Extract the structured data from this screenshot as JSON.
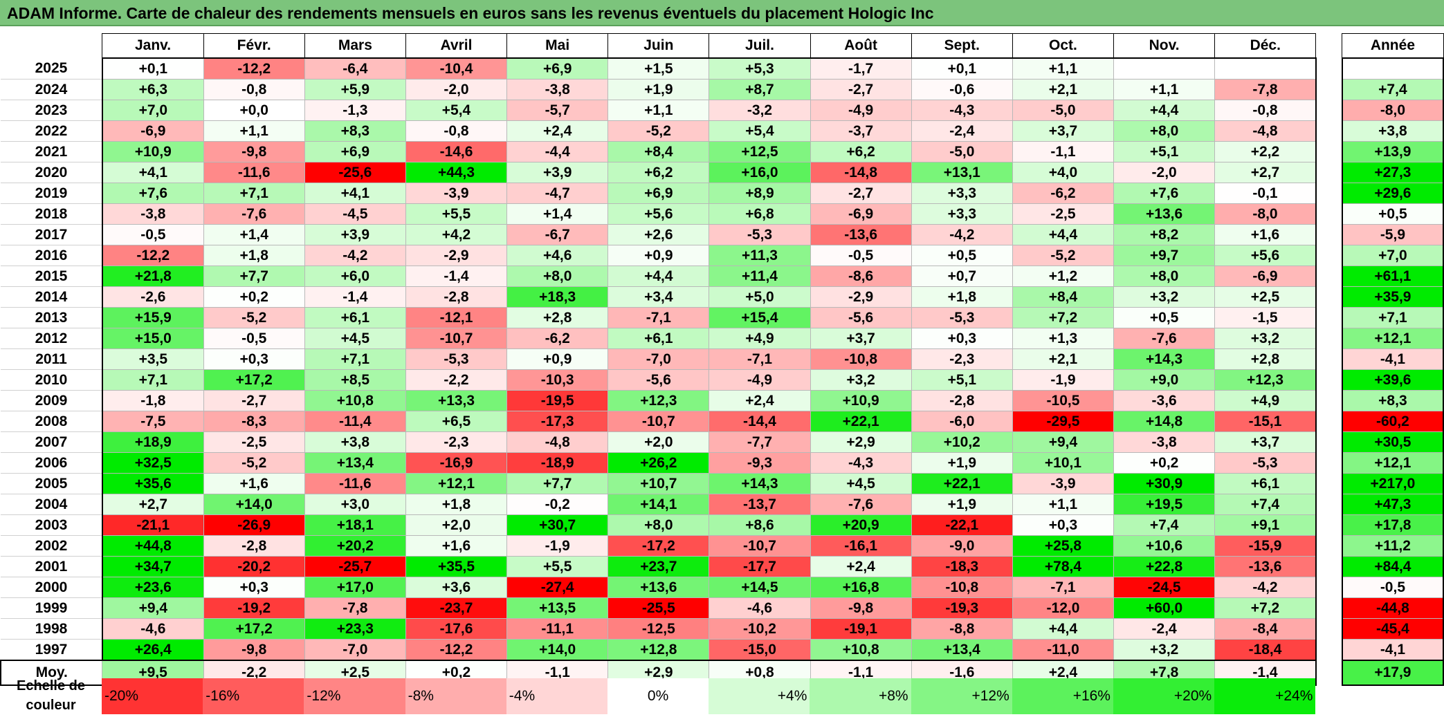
{
  "title": "ADAM Informe. Carte de chaleur des rendements mensuels en euros sans les revenus éventuels du placement Hologic Inc",
  "colors": {
    "title_bg": "#7cc47c",
    "neg_max": "#ff0000",
    "pos_max": "#00ee00",
    "zero": "#ffffff"
  },
  "chart_data": {
    "type": "heatmap",
    "title": "ADAM Informe. Carte de chaleur des rendements mensuels en euros sans les revenus éventuels du placement Hologic Inc",
    "columns": [
      "Janv.",
      "Févr.",
      "Mars",
      "Avril",
      "Mai",
      "Juin",
      "Juil.",
      "Août",
      "Sept.",
      "Oct.",
      "Nov.",
      "Déc."
    ],
    "year_header": "Année",
    "avg_label": "Moy.",
    "rows": [
      {
        "year": "2025",
        "months": [
          "+0,1",
          "-12,2",
          "-6,4",
          "-10,4",
          "+6,9",
          "+1,5",
          "+5,3",
          "-1,7",
          "+0,1",
          "+1,1",
          "",
          ""
        ],
        "annual": ""
      },
      {
        "year": "2024",
        "months": [
          "+6,3",
          "-0,8",
          "+5,9",
          "-2,0",
          "-3,8",
          "+1,9",
          "+8,7",
          "-2,7",
          "-0,6",
          "+2,1",
          "+1,1",
          "-7,8"
        ],
        "annual": "+7,4"
      },
      {
        "year": "2023",
        "months": [
          "+7,0",
          "+0,0",
          "-1,3",
          "+5,4",
          "-5,7",
          "+1,1",
          "-3,2",
          "-4,9",
          "-4,3",
          "-5,0",
          "+4,4",
          "-0,8"
        ],
        "annual": "-8,0"
      },
      {
        "year": "2022",
        "months": [
          "-6,9",
          "+1,1",
          "+8,3",
          "-0,8",
          "+2,4",
          "-5,2",
          "+5,4",
          "-3,7",
          "-2,4",
          "+3,7",
          "+8,0",
          "-4,8"
        ],
        "annual": "+3,8"
      },
      {
        "year": "2021",
        "months": [
          "+10,9",
          "-9,8",
          "+6,9",
          "-14,6",
          "-4,4",
          "+8,4",
          "+12,5",
          "+6,2",
          "-5,0",
          "-1,1",
          "+5,1",
          "+2,2"
        ],
        "annual": "+13,9"
      },
      {
        "year": "2020",
        "months": [
          "+4,1",
          "-11,6",
          "-25,6",
          "+44,3",
          "+3,9",
          "+6,2",
          "+16,0",
          "-14,8",
          "+13,1",
          "+4,0",
          "-2,0",
          "+2,7"
        ],
        "annual": "+27,3"
      },
      {
        "year": "2019",
        "months": [
          "+7,6",
          "+7,1",
          "+4,1",
          "-3,9",
          "-4,7",
          "+6,9",
          "+8,9",
          "-2,7",
          "+3,3",
          "-6,2",
          "+7,6",
          "-0,1"
        ],
        "annual": "+29,6"
      },
      {
        "year": "2018",
        "months": [
          "-3,8",
          "-7,6",
          "-4,5",
          "+5,5",
          "+1,4",
          "+5,6",
          "+6,8",
          "-6,9",
          "+3,3",
          "-2,5",
          "+13,6",
          "-8,0"
        ],
        "annual": "+0,5"
      },
      {
        "year": "2017",
        "months": [
          "-0,5",
          "+1,4",
          "+3,9",
          "+4,2",
          "-6,7",
          "+2,6",
          "-5,3",
          "-13,6",
          "-4,2",
          "+4,4",
          "+8,2",
          "+1,6"
        ],
        "annual": "-5,9"
      },
      {
        "year": "2016",
        "months": [
          "-12,2",
          "+1,8",
          "-4,2",
          "-2,9",
          "+4,6",
          "+0,9",
          "+11,3",
          "-0,5",
          "+0,5",
          "-5,2",
          "+9,7",
          "+5,6"
        ],
        "annual": "+7,0"
      },
      {
        "year": "2015",
        "months": [
          "+21,8",
          "+7,7",
          "+6,0",
          "-1,4",
          "+8,0",
          "+4,4",
          "+11,4",
          "-8,6",
          "+0,7",
          "+1,2",
          "+8,0",
          "-6,9"
        ],
        "annual": "+61,1"
      },
      {
        "year": "2014",
        "months": [
          "-2,6",
          "+0,2",
          "-1,4",
          "-2,8",
          "+18,3",
          "+3,4",
          "+5,0",
          "-2,9",
          "+1,8",
          "+8,4",
          "+3,2",
          "+2,5"
        ],
        "annual": "+35,9"
      },
      {
        "year": "2013",
        "months": [
          "+15,9",
          "-5,2",
          "+6,1",
          "-12,1",
          "+2,8",
          "-7,1",
          "+15,4",
          "-5,6",
          "-5,3",
          "+7,2",
          "+0,5",
          "-1,5"
        ],
        "annual": "+7,1"
      },
      {
        "year": "2012",
        "months": [
          "+15,0",
          "-0,5",
          "+4,5",
          "-10,7",
          "-6,2",
          "+6,1",
          "+4,9",
          "+3,7",
          "+0,3",
          "+1,3",
          "-7,6",
          "+3,2"
        ],
        "annual": "+12,1"
      },
      {
        "year": "2011",
        "months": [
          "+3,5",
          "+0,3",
          "+7,1",
          "-5,3",
          "+0,9",
          "-7,0",
          "-7,1",
          "-10,8",
          "-2,3",
          "+2,1",
          "+14,3",
          "+2,8"
        ],
        "annual": "-4,1"
      },
      {
        "year": "2010",
        "months": [
          "+7,1",
          "+17,2",
          "+8,5",
          "-2,2",
          "-10,3",
          "-5,6",
          "-4,9",
          "+3,2",
          "+5,1",
          "-1,9",
          "+9,0",
          "+12,3"
        ],
        "annual": "+39,6"
      },
      {
        "year": "2009",
        "months": [
          "-1,8",
          "-2,7",
          "+10,8",
          "+13,3",
          "-19,5",
          "+12,3",
          "+2,4",
          "+10,9",
          "-2,8",
          "-10,5",
          "-3,6",
          "+4,9"
        ],
        "annual": "+8,3"
      },
      {
        "year": "2008",
        "months": [
          "-7,5",
          "-8,3",
          "-11,4",
          "+6,5",
          "-17,3",
          "-10,7",
          "-14,4",
          "+22,1",
          "-6,0",
          "-29,5",
          "+14,8",
          "-15,1"
        ],
        "annual": "-60,2"
      },
      {
        "year": "2007",
        "months": [
          "+18,9",
          "-2,5",
          "+3,8",
          "-2,3",
          "-4,8",
          "+2,0",
          "-7,7",
          "+2,9",
          "+10,2",
          "+9,4",
          "-3,8",
          "+3,7"
        ],
        "annual": "+30,5"
      },
      {
        "year": "2006",
        "months": [
          "+32,5",
          "-5,2",
          "+13,4",
          "-16,9",
          "-18,9",
          "+26,2",
          "-9,3",
          "-4,3",
          "+1,9",
          "+10,1",
          "+0,2",
          "-5,3"
        ],
        "annual": "+12,1"
      },
      {
        "year": "2005",
        "months": [
          "+35,6",
          "+1,6",
          "-11,6",
          "+12,1",
          "+7,7",
          "+10,7",
          "+14,3",
          "+4,5",
          "+22,1",
          "-3,9",
          "+30,9",
          "+6,1"
        ],
        "annual": "+217,0"
      },
      {
        "year": "2004",
        "months": [
          "+2,7",
          "+14,0",
          "+3,0",
          "+1,8",
          "-0,2",
          "+14,1",
          "-13,7",
          "-7,6",
          "+1,9",
          "+1,1",
          "+19,5",
          "+7,4"
        ],
        "annual": "+47,3"
      },
      {
        "year": "2003",
        "months": [
          "-21,1",
          "-26,9",
          "+18,1",
          "+2,0",
          "+30,7",
          "+8,0",
          "+8,6",
          "+20,9",
          "-22,1",
          "+0,3",
          "+7,4",
          "+9,1"
        ],
        "annual": "+17,8"
      },
      {
        "year": "2002",
        "months": [
          "+44,8",
          "-2,8",
          "+20,2",
          "+1,6",
          "-1,9",
          "-17,2",
          "-10,7",
          "-16,1",
          "-9,0",
          "+25,8",
          "+10,6",
          "-15,9"
        ],
        "annual": "+11,2"
      },
      {
        "year": "2001",
        "months": [
          "+34,7",
          "-20,2",
          "-25,7",
          "+35,5",
          "+5,5",
          "+23,7",
          "-17,7",
          "+2,4",
          "-18,3",
          "+78,4",
          "+22,8",
          "-13,6"
        ],
        "annual": "+84,4"
      },
      {
        "year": "2000",
        "months": [
          "+23,6",
          "+0,3",
          "+17,0",
          "+3,6",
          "-27,4",
          "+13,6",
          "+14,5",
          "+16,8",
          "-10,8",
          "-7,1",
          "-24,5",
          "-4,2"
        ],
        "annual": "-0,5"
      },
      {
        "year": "1999",
        "months": [
          "+9,4",
          "-19,2",
          "-7,8",
          "-23,7",
          "+13,5",
          "-25,5",
          "-4,6",
          "-9,8",
          "-19,3",
          "-12,0",
          "+60,0",
          "+7,2"
        ],
        "annual": "-44,8"
      },
      {
        "year": "1998",
        "months": [
          "-4,6",
          "+17,2",
          "+23,3",
          "-17,6",
          "-11,1",
          "-12,5",
          "-10,2",
          "-19,1",
          "-8,8",
          "+4,4",
          "-2,4",
          "-8,4"
        ],
        "annual": "-45,4"
      },
      {
        "year": "1997",
        "months": [
          "+26,4",
          "-9,8",
          "-7,0",
          "-12,2",
          "+14,0",
          "+12,8",
          "-15,0",
          "+10,8",
          "+13,4",
          "-11,0",
          "+3,2",
          "-18,4"
        ],
        "annual": "-4,1"
      }
    ],
    "averages": {
      "months": [
        "+9,5",
        "-2,2",
        "+2,5",
        "+0,2",
        "-1,1",
        "+2,9",
        "+0,8",
        "-1,1",
        "-1,6",
        "+2,4",
        "+7,8",
        "-1,4"
      ],
      "annual": "+17,9"
    },
    "scale": {
      "label_line1": "Echelle de",
      "label_line2": "couleur",
      "steps": [
        {
          "label": "-20%",
          "value": -20
        },
        {
          "label": "-16%",
          "value": -16
        },
        {
          "label": "-12%",
          "value": -12
        },
        {
          "label": "-8%",
          "value": -8
        },
        {
          "label": "-4%",
          "value": -4
        },
        {
          "label": "0%",
          "value": 0
        },
        {
          "label": "+4%",
          "value": 4
        },
        {
          "label": "+8%",
          "value": 8
        },
        {
          "label": "+12%",
          "value": 12
        },
        {
          "label": "+16%",
          "value": 16
        },
        {
          "label": "+20%",
          "value": 20
        },
        {
          "label": "+24%",
          "value": 24
        }
      ]
    }
  }
}
